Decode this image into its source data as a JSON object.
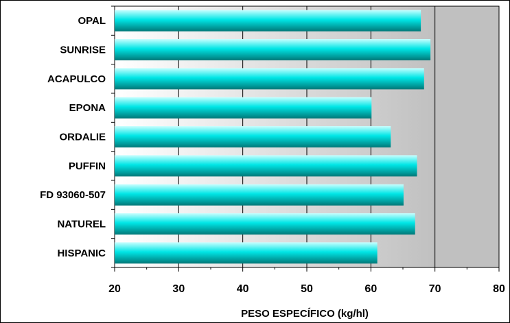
{
  "chart_data": {
    "type": "bar",
    "orientation": "horizontal",
    "categories": [
      "OPAL",
      "SUNRISE",
      "ACAPULCO",
      "EPONA",
      "ORDALIE",
      "PUFFIN",
      "FD 93060-507",
      "NATUREL ",
      "HISPANIC"
    ],
    "values": [
      67.8,
      69.3,
      68.3,
      60.1,
      63.1,
      67.2,
      65.1,
      66.9,
      61.0
    ],
    "title": "",
    "xlabel": "PESO ESPECÍFICO (kg/hl)",
    "ylabel": "",
    "xlim": [
      20,
      80
    ],
    "xticks": [
      20,
      30,
      40,
      50,
      60,
      70,
      80
    ],
    "xtick_labels": [
      "20",
      "30",
      "40",
      "50",
      "60",
      "70",
      "80"
    ],
    "reference_line": 70,
    "grid": "vertical",
    "legend": "none",
    "colors": {
      "bar_top": "#c8ffff",
      "bar_mid": "#00e6e6",
      "bar_bottom": "#007878",
      "plot_left": "#ffffff",
      "plot_right": "#c0c0c0",
      "shaded_region": "#c0c0c0",
      "grid": "#000000"
    }
  }
}
